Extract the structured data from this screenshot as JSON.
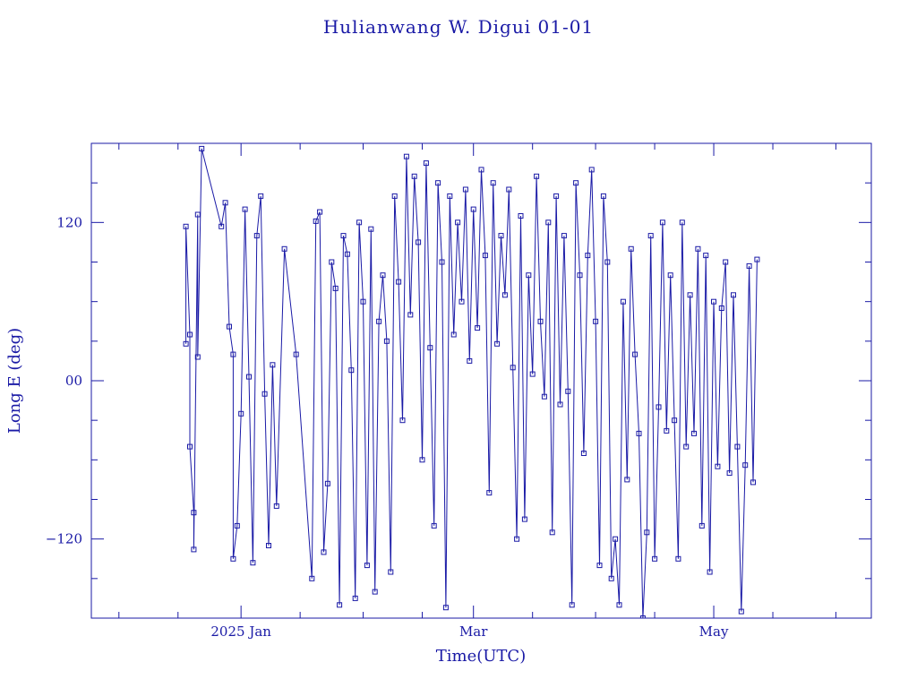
{
  "chart_data": {
    "type": "scatter",
    "title": "Hulianwang W. Digui 01-01",
    "xlabel": "Time(UTC)",
    "ylabel": "Long E (deg)",
    "x_range": [
      "2024-11-24",
      "2025-06-10"
    ],
    "ylim": [
      -180,
      180
    ],
    "y_ticks": [
      -120,
      0,
      120
    ],
    "y_tick_labels": [
      "−120",
      "00",
      "120"
    ],
    "x_ticks": [
      {
        "date": "2025-01-01",
        "label": "2025 Jan"
      },
      {
        "date": "2025-03-01",
        "label": "Mar"
      },
      {
        "date": "2025-05-01",
        "label": "May"
      }
    ],
    "grid": false,
    "markers_connected": true,
    "series": [
      {
        "points": [
          [
            "2024-12-18",
            28
          ],
          [
            "2024-12-18",
            117
          ],
          [
            "2024-12-19",
            35
          ],
          [
            "2024-12-19",
            -50
          ],
          [
            "2024-12-20",
            -100
          ],
          [
            "2024-12-20",
            -128
          ],
          [
            "2024-12-21",
            126
          ],
          [
            "2024-12-21",
            18
          ],
          [
            "2024-12-22",
            176
          ],
          [
            "2024-12-27",
            117
          ],
          [
            "2024-12-28",
            135
          ],
          [
            "2024-12-29",
            41
          ],
          [
            "2024-12-30",
            20
          ],
          [
            "2024-12-30",
            -135
          ],
          [
            "2024-12-31",
            -110
          ],
          [
            "2025-01-01",
            -25
          ],
          [
            "2025-01-02",
            130
          ],
          [
            "2025-01-03",
            3
          ],
          [
            "2025-01-04",
            -138
          ],
          [
            "2025-01-05",
            110
          ],
          [
            "2025-01-06",
            140
          ],
          [
            "2025-01-07",
            -10
          ],
          [
            "2025-01-08",
            -125
          ],
          [
            "2025-01-09",
            12
          ],
          [
            "2025-01-10",
            -95
          ],
          [
            "2025-01-12",
            100
          ],
          [
            "2025-01-15",
            20
          ],
          [
            "2025-01-19",
            -150
          ],
          [
            "2025-01-20",
            121
          ],
          [
            "2025-01-21",
            128
          ],
          [
            "2025-01-22",
            -130
          ],
          [
            "2025-01-23",
            -78
          ],
          [
            "2025-01-24",
            90
          ],
          [
            "2025-01-25",
            70
          ],
          [
            "2025-01-26",
            -170
          ],
          [
            "2025-01-27",
            110
          ],
          [
            "2025-01-28",
            96
          ],
          [
            "2025-01-29",
            8
          ],
          [
            "2025-01-30",
            -165
          ],
          [
            "2025-01-31",
            120
          ],
          [
            "2025-02-01",
            60
          ],
          [
            "2025-02-02",
            -140
          ],
          [
            "2025-02-03",
            115
          ],
          [
            "2025-02-04",
            -160
          ],
          [
            "2025-02-05",
            45
          ],
          [
            "2025-02-06",
            80
          ],
          [
            "2025-02-07",
            30
          ],
          [
            "2025-02-08",
            -145
          ],
          [
            "2025-02-09",
            140
          ],
          [
            "2025-02-10",
            75
          ],
          [
            "2025-02-11",
            -30
          ],
          [
            "2025-02-12",
            170
          ],
          [
            "2025-02-13",
            50
          ],
          [
            "2025-02-14",
            155
          ],
          [
            "2025-02-15",
            105
          ],
          [
            "2025-02-16",
            -60
          ],
          [
            "2025-02-17",
            165
          ],
          [
            "2025-02-18",
            25
          ],
          [
            "2025-02-19",
            -110
          ],
          [
            "2025-02-20",
            150
          ],
          [
            "2025-02-21",
            90
          ],
          [
            "2025-02-22",
            -172
          ],
          [
            "2025-02-23",
            140
          ],
          [
            "2025-02-24",
            35
          ],
          [
            "2025-02-25",
            120
          ],
          [
            "2025-02-26",
            60
          ],
          [
            "2025-02-27",
            145
          ],
          [
            "2025-02-28",
            15
          ],
          [
            "2025-03-01",
            130
          ],
          [
            "2025-03-02",
            40
          ],
          [
            "2025-03-03",
            160
          ],
          [
            "2025-03-04",
            95
          ],
          [
            "2025-03-05",
            -85
          ],
          [
            "2025-03-06",
            150
          ],
          [
            "2025-03-07",
            28
          ],
          [
            "2025-03-08",
            110
          ],
          [
            "2025-03-09",
            65
          ],
          [
            "2025-03-10",
            145
          ],
          [
            "2025-03-11",
            10
          ],
          [
            "2025-03-12",
            -120
          ],
          [
            "2025-03-13",
            125
          ],
          [
            "2025-03-14",
            -105
          ],
          [
            "2025-03-15",
            80
          ],
          [
            "2025-03-16",
            5
          ],
          [
            "2025-03-17",
            155
          ],
          [
            "2025-03-18",
            45
          ],
          [
            "2025-03-19",
            -12
          ],
          [
            "2025-03-20",
            120
          ],
          [
            "2025-03-21",
            -115
          ],
          [
            "2025-03-22",
            140
          ],
          [
            "2025-03-23",
            -18
          ],
          [
            "2025-03-24",
            110
          ],
          [
            "2025-03-25",
            -8
          ],
          [
            "2025-03-26",
            -170
          ],
          [
            "2025-03-27",
            150
          ],
          [
            "2025-03-28",
            80
          ],
          [
            "2025-03-29",
            -55
          ],
          [
            "2025-03-30",
            95
          ],
          [
            "2025-03-31",
            160
          ],
          [
            "2025-04-01",
            45
          ],
          [
            "2025-04-02",
            -140
          ],
          [
            "2025-04-03",
            140
          ],
          [
            "2025-04-04",
            90
          ],
          [
            "2025-04-05",
            -150
          ],
          [
            "2025-04-06",
            -120
          ],
          [
            "2025-04-07",
            -170
          ],
          [
            "2025-04-08",
            60
          ],
          [
            "2025-04-09",
            -75
          ],
          [
            "2025-04-10",
            100
          ],
          [
            "2025-04-11",
            20
          ],
          [
            "2025-04-12",
            -40
          ],
          [
            "2025-04-13",
            -180
          ],
          [
            "2025-04-14",
            -115
          ],
          [
            "2025-04-15",
            110
          ],
          [
            "2025-04-16",
            -135
          ],
          [
            "2025-04-17",
            -20
          ],
          [
            "2025-04-18",
            120
          ],
          [
            "2025-04-19",
            -38
          ],
          [
            "2025-04-20",
            80
          ],
          [
            "2025-04-21",
            -30
          ],
          [
            "2025-04-22",
            -135
          ],
          [
            "2025-04-23",
            120
          ],
          [
            "2025-04-24",
            -50
          ],
          [
            "2025-04-25",
            65
          ],
          [
            "2025-04-26",
            -40
          ],
          [
            "2025-04-27",
            100
          ],
          [
            "2025-04-28",
            -110
          ],
          [
            "2025-04-29",
            95
          ],
          [
            "2025-04-30",
            -145
          ],
          [
            "2025-05-01",
            60
          ],
          [
            "2025-05-02",
            -65
          ],
          [
            "2025-05-03",
            55
          ],
          [
            "2025-05-04",
            90
          ],
          [
            "2025-05-05",
            -70
          ],
          [
            "2025-05-06",
            65
          ],
          [
            "2025-05-07",
            -50
          ],
          [
            "2025-05-08",
            -175
          ],
          [
            "2025-05-09",
            -64
          ],
          [
            "2025-05-10",
            87
          ],
          [
            "2025-05-11",
            -77
          ],
          [
            "2025-05-12",
            92
          ]
        ]
      }
    ]
  }
}
